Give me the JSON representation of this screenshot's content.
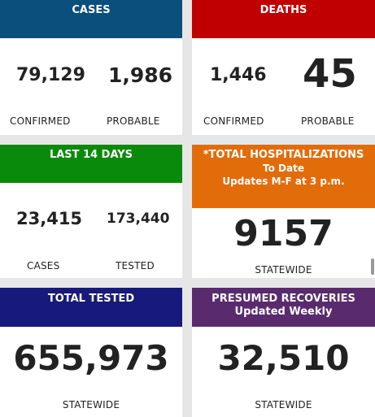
{
  "colors": {
    "cases": "#0b4f7c",
    "deaths": "#c00000",
    "last14": "#0a8a0a",
    "hospital": "#e36c0a",
    "tested": "#171a7a",
    "recoveries": "#5a2a6e"
  },
  "cases": {
    "title": "CASES",
    "confirmed_value": "79,129",
    "confirmed_label": "CONFIRMED",
    "probable_value": "1,986",
    "probable_label": "PROBABLE"
  },
  "deaths": {
    "title": "DEATHS",
    "confirmed_value": "1,446",
    "confirmed_label": "CONFIRMED",
    "probable_value": "45",
    "probable_label": "PROBABLE"
  },
  "last14": {
    "title": "LAST 14 DAYS",
    "cases_value": "23,415",
    "cases_label": "CASES",
    "tested_value": "173,440",
    "tested_label": "TESTED"
  },
  "hospital": {
    "title_line1": "*TOTAL HOSPITALIZATIONS",
    "title_line2": "To Date",
    "title_line3": "Updates M-F at 3 p.m.",
    "value": "9157",
    "label": "STATEWIDE"
  },
  "tested": {
    "title": "TOTAL TESTED",
    "value": "655,973",
    "label": "STATEWIDE"
  },
  "recoveries": {
    "title_line1": "PRESUMED RECOVERIES",
    "title_line2": "Updated Weekly",
    "value": "32,510",
    "label": "STATEWIDE"
  }
}
